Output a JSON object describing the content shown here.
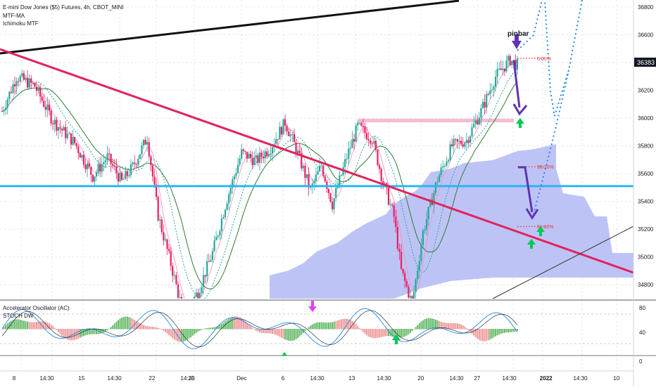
{
  "header": {
    "title": "E-mini Dow Jones ($5) Futures, 4h, CBOT_MINI",
    "indicators": [
      "MTF-MA",
      "Ichimoku MTF"
    ]
  },
  "lower_pane": {
    "indicators": [
      "Accelerator Oscillator (AC)",
      "STOCH DW"
    ]
  },
  "annotations": {
    "pinbar": "pinbar",
    "fib_0": "0.00%",
    "fib_38": "38.20%",
    "fib_61": "61.80%"
  },
  "colors": {
    "up_candle": "#26a69a",
    "down_candle": "#e91e63",
    "main_trendline": "#e0245e",
    "horizontal_support": "#29b6f6",
    "ichimoku_cloud": "#b3b9f5",
    "resistance_zone": "#f8bbd0",
    "projection": "#1e88e5",
    "arrow_down": "#5e35b1",
    "arrow_up": "#00c853"
  },
  "chart_data": {
    "type": "candlestick",
    "title": "E-mini Dow Jones ($5) Futures, 4h, CBOT_MINI",
    "last_price": "36383",
    "price_axis_labels": [
      "36800",
      "36600",
      "36400",
      "36200",
      "36000",
      "35800",
      "35600",
      "35400",
      "35200",
      "35000",
      "34800"
    ],
    "oscillator_axis_labels": [
      "80",
      "40",
      "0"
    ],
    "time_axis_labels": [
      "8",
      "14:30",
      "15",
      "14:30",
      "22",
      "14:30",
      "25",
      "Dec",
      "6",
      "14:30",
      "13",
      "14:30",
      "20",
      "14:30",
      "27",
      "14:30",
      "2022",
      "14:30",
      "10"
    ],
    "grid": true,
    "fib_levels": [
      {
        "label": "0.00%",
        "price": 36430
      },
      {
        "label": "38.20%",
        "price": 35650
      },
      {
        "label": "61.80%",
        "price": 35220
      }
    ],
    "horizontal_support": 35510,
    "resistance_zone": 35985,
    "close_path": [
      [
        0,
        36050
      ],
      [
        8,
        36300
      ],
      [
        18,
        36230
      ],
      [
        28,
        35980
      ],
      [
        40,
        35820
      ],
      [
        50,
        35580
      ],
      [
        58,
        35720
      ],
      [
        66,
        35540
      ],
      [
        72,
        35650
      ],
      [
        80,
        35860
      ],
      [
        86,
        35300
      ],
      [
        94,
        34900
      ],
      [
        100,
        34580
      ],
      [
        108,
        34750
      ],
      [
        116,
        35030
      ],
      [
        124,
        35420
      ],
      [
        132,
        35750
      ],
      [
        140,
        35690
      ],
      [
        148,
        35790
      ],
      [
        156,
        35970
      ],
      [
        162,
        35780
      ],
      [
        170,
        35480
      ],
      [
        176,
        35660
      ],
      [
        182,
        35380
      ],
      [
        190,
        35720
      ],
      [
        196,
        35940
      ],
      [
        204,
        35850
      ],
      [
        210,
        35540
      ],
      [
        216,
        35290
      ],
      [
        220,
        34900
      ],
      [
        226,
        34660
      ],
      [
        232,
        35180
      ],
      [
        240,
        35560
      ],
      [
        248,
        35800
      ],
      [
        256,
        35840
      ],
      [
        264,
        36050
      ],
      [
        272,
        36300
      ],
      [
        280,
        36420
      ],
      [
        284,
        36383
      ]
    ]
  }
}
